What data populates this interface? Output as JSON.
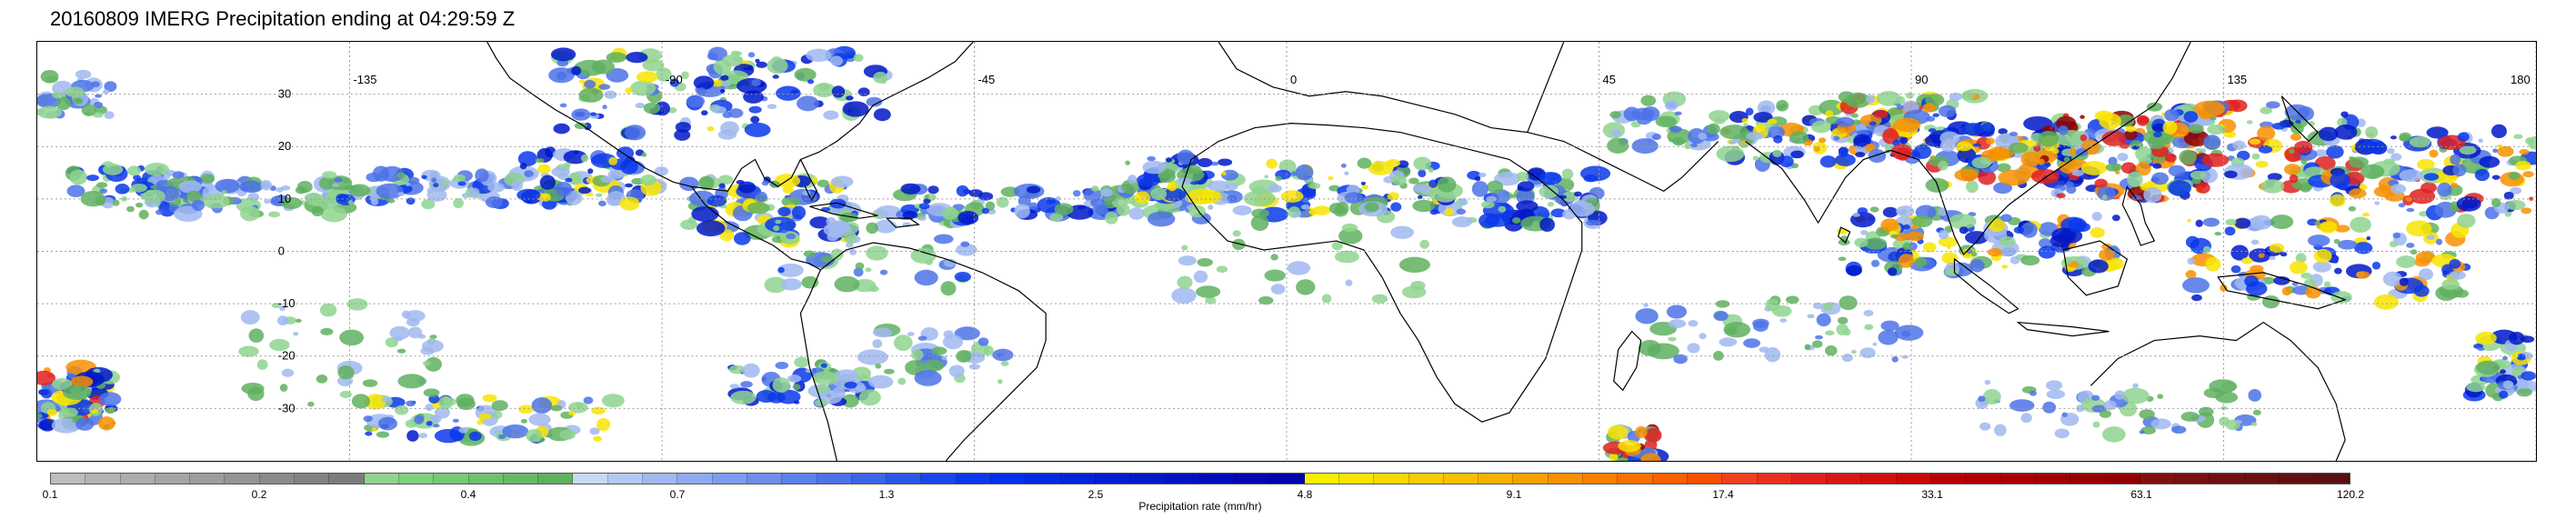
{
  "title": "20160809 IMERG Precipitation ending at 04:29:59 Z",
  "map": {
    "lon_range": [
      -180,
      180
    ],
    "lat_range": [
      -40,
      40
    ],
    "longitude_ticks": [
      {
        "value": -135,
        "label": "-135"
      },
      {
        "value": -90,
        "label": "-90"
      },
      {
        "value": -45,
        "label": "-45"
      },
      {
        "value": 0,
        "label": "0"
      },
      {
        "value": 45,
        "label": "45"
      },
      {
        "value": 90,
        "label": "90"
      },
      {
        "value": 135,
        "label": "135"
      },
      {
        "value": 180,
        "label": "180"
      }
    ],
    "latitude_ticks": [
      {
        "value": 30,
        "label": "30"
      },
      {
        "value": 20,
        "label": "20"
      },
      {
        "value": 10,
        "label": "10"
      },
      {
        "value": 0,
        "label": "0"
      },
      {
        "value": -10,
        "label": "-10"
      },
      {
        "value": -20,
        "label": "-20"
      },
      {
        "value": -30,
        "label": "-30"
      }
    ],
    "grid": "dotted",
    "coastline_color": "#000000"
  },
  "colorbar": {
    "title": "Precipitation rate (mm/hr)",
    "labels": [
      {
        "text": "0.1",
        "index": 0
      },
      {
        "text": "0.2",
        "index": 6
      },
      {
        "text": "0.4",
        "index": 12
      },
      {
        "text": "0.7",
        "index": 18
      },
      {
        "text": "1.3",
        "index": 24
      },
      {
        "text": "2.5",
        "index": 30
      },
      {
        "text": "4.8",
        "index": 36
      },
      {
        "text": "9.1",
        "index": 42
      },
      {
        "text": "17.4",
        "index": 48
      },
      {
        "text": "33.1",
        "index": 54
      },
      {
        "text": "63.1",
        "index": 60
      },
      {
        "text": "120.2",
        "index": 66
      }
    ],
    "colors": [
      "#bdbdbd",
      "#b5b5b5",
      "#adadad",
      "#a5a5a5",
      "#9d9d9d",
      "#959595",
      "#8a8a8a",
      "#828282",
      "#7c7c7c",
      "#8fd48f",
      "#82cf82",
      "#78c878",
      "#70c070",
      "#68b868",
      "#5fb05f",
      "#c8d8f8",
      "#b4c8f4",
      "#a0b8f0",
      "#8eaaee",
      "#7e9cec",
      "#6e8eea",
      "#5c80ea",
      "#4c72e8",
      "#3c64e6",
      "#2c56e6",
      "#1a46e8",
      "#0a38ea",
      "#0030e8",
      "#002ae0",
      "#0024d8",
      "#001ed0",
      "#0018c8",
      "#0012c0",
      "#000cb8",
      "#0008b0",
      "#0004a8",
      "#f8f000",
      "#f8e400",
      "#f8d800",
      "#f8cc00",
      "#f8c000",
      "#f8b000",
      "#f8a000",
      "#f89000",
      "#f88000",
      "#f87000",
      "#f86000",
      "#f85000",
      "#f04020",
      "#e83020",
      "#e02020",
      "#d81818",
      "#d01010",
      "#c80808",
      "#b80000",
      "#b00000",
      "#a80000",
      "#a00000",
      "#980000",
      "#900000",
      "#801010",
      "#781010",
      "#701010",
      "#681010",
      "#601010",
      "#581010"
    ]
  }
}
